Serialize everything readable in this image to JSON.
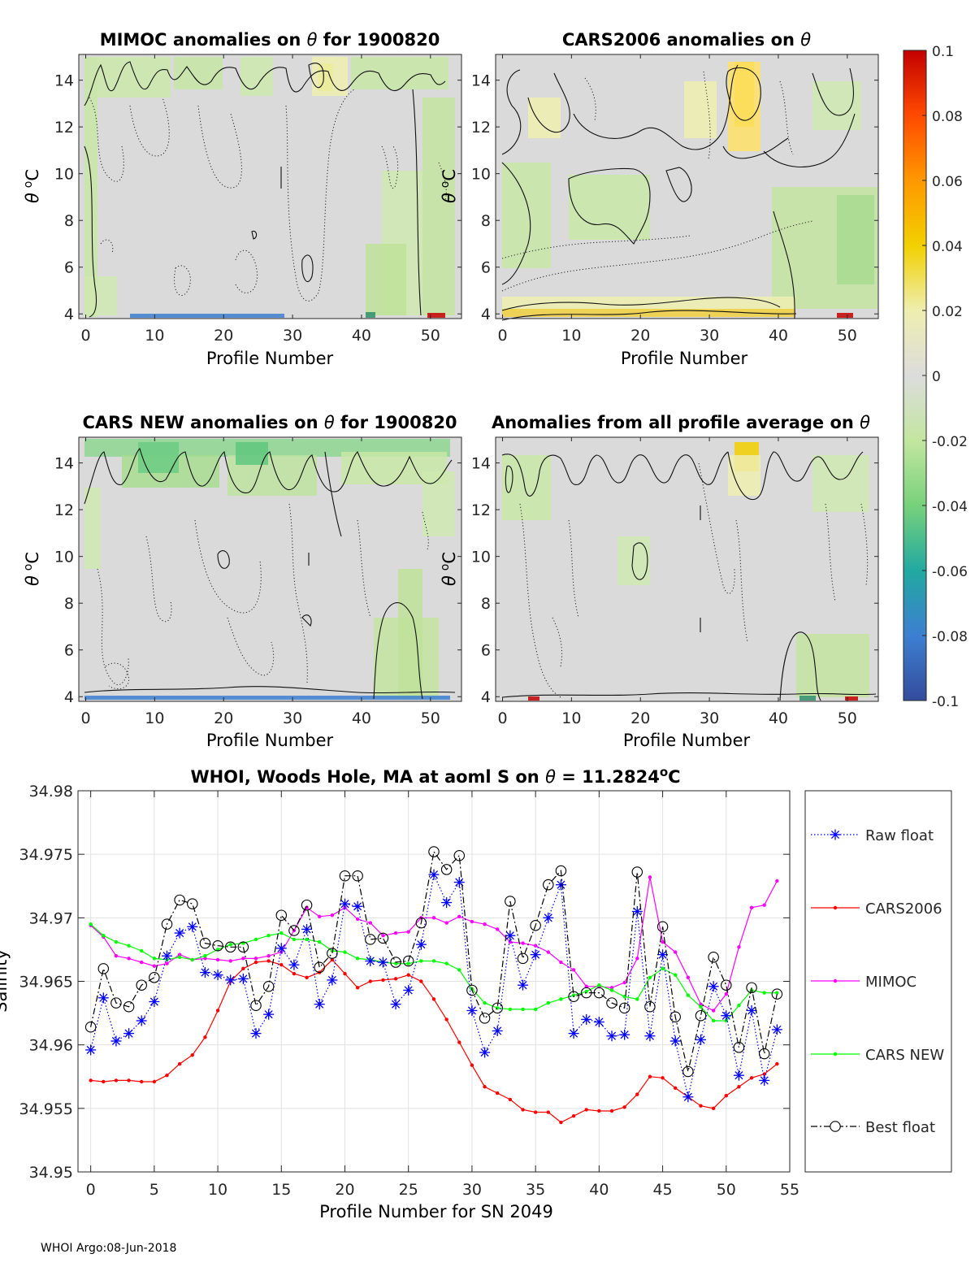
{
  "footer": "WHOI Argo:08-Jun-2018",
  "colorbar": {
    "ticks": [
      "0.1",
      "0.08",
      "0.06",
      "0.04",
      "0.02",
      "0",
      "-0.02",
      "-0.04",
      "-0.06",
      "-0.08",
      "-0.1"
    ],
    "range": [
      -0.1,
      0.1
    ]
  },
  "panels": [
    {
      "title_pre": "MIMOC anomalies on ",
      "theta": "θ",
      "title_post": "  for 1900820",
      "xlabel": "Profile Number",
      "ylabel_theta": "θ",
      "ylabel_o": "o",
      "ylabel_c": "C"
    },
    {
      "title_pre": "CARS2006 anomalies on ",
      "theta": "θ",
      "title_post": "",
      "xlabel": "Profile Number",
      "ylabel_theta": "θ",
      "ylabel_o": "o",
      "ylabel_c": "C"
    },
    {
      "title_pre": "CARS NEW anomalies on ",
      "theta": "θ",
      "title_post": " for 1900820",
      "xlabel": "Profile Number",
      "ylabel_theta": "θ",
      "ylabel_o": "o",
      "ylabel_c": "C"
    },
    {
      "title_pre": "Anomalies from all profile average on ",
      "theta": "θ",
      "title_post": "",
      "xlabel": "Profile Number",
      "ylabel_theta": "θ",
      "ylabel_o": "o",
      "ylabel_c": "C"
    }
  ],
  "chart_data": [
    {
      "type": "heatmap",
      "name": "MIMOC anomalies",
      "xlim": [
        -1,
        54.5
      ],
      "ylim": [
        3.8,
        15.1
      ],
      "xticks": [
        "0",
        "10",
        "20",
        "30",
        "40",
        "50"
      ],
      "xtick_values": [
        0,
        10,
        20,
        30,
        40,
        50
      ],
      "yticks": [
        "4",
        "6",
        "8",
        "10",
        "12",
        "14"
      ],
      "ytick_values": [
        4,
        6,
        8,
        10,
        12,
        14
      ]
    },
    {
      "type": "heatmap",
      "name": "CARS2006 anomalies",
      "xlim": [
        -1,
        54.5
      ],
      "ylim": [
        3.8,
        15.1
      ],
      "xticks": [
        "0",
        "10",
        "20",
        "30",
        "40",
        "50"
      ],
      "xtick_values": [
        0,
        10,
        20,
        30,
        40,
        50
      ],
      "yticks": [
        "4",
        "6",
        "8",
        "10",
        "12",
        "14"
      ],
      "ytick_values": [
        4,
        6,
        8,
        10,
        12,
        14
      ]
    },
    {
      "type": "heatmap",
      "name": "CARS NEW anomalies",
      "xlim": [
        -1,
        54.5
      ],
      "ylim": [
        3.8,
        15.1
      ],
      "xticks": [
        "0",
        "10",
        "20",
        "30",
        "40",
        "50"
      ],
      "xtick_values": [
        0,
        10,
        20,
        30,
        40,
        50
      ],
      "yticks": [
        "4",
        "6",
        "8",
        "10",
        "12",
        "14"
      ],
      "ytick_values": [
        4,
        6,
        8,
        10,
        12,
        14
      ]
    },
    {
      "type": "heatmap",
      "name": "Anomalies from all profile average",
      "xlim": [
        -1,
        54.5
      ],
      "ylim": [
        3.8,
        15.1
      ],
      "xticks": [
        "0",
        "10",
        "20",
        "30",
        "40",
        "50"
      ],
      "xtick_values": [
        0,
        10,
        20,
        30,
        40,
        50
      ],
      "yticks": [
        "4",
        "6",
        "8",
        "10",
        "12",
        "14"
      ],
      "ytick_values": [
        4,
        6,
        8,
        10,
        12,
        14
      ]
    },
    {
      "type": "line",
      "title_pre": "WHOI, Woods Hole, MA at aoml S on ",
      "title_theta": "θ",
      "title_eq": " = 11.2824",
      "title_sup": "o",
      "title_unit": "C",
      "xlabel": "Profile Number for SN 2049",
      "ylabel": "Salinity",
      "xlim": [
        -1,
        55
      ],
      "ylim": [
        34.95,
        34.98
      ],
      "xticks": [
        "0",
        "5",
        "10",
        "15",
        "20",
        "25",
        "30",
        "35",
        "40",
        "45",
        "50",
        "55"
      ],
      "xtick_values": [
        0,
        5,
        10,
        15,
        20,
        25,
        30,
        35,
        40,
        45,
        50,
        55
      ],
      "yticks": [
        "34.95",
        "34.955",
        "34.96",
        "34.965",
        "34.97",
        "34.975",
        "34.98"
      ],
      "ytick_values": [
        34.95,
        34.955,
        34.96,
        34.965,
        34.97,
        34.975,
        34.98
      ],
      "x": [
        0,
        1,
        2,
        3,
        4,
        5,
        6,
        7,
        8,
        9,
        10,
        11,
        12,
        13,
        14,
        15,
        16,
        17,
        18,
        19,
        20,
        21,
        22,
        23,
        24,
        25,
        26,
        27,
        28,
        29,
        30,
        31,
        32,
        33,
        34,
        35,
        36,
        37,
        38,
        39,
        40,
        41,
        42,
        43,
        44,
        45,
        46,
        47,
        48,
        49,
        50,
        51,
        52,
        53,
        54
      ],
      "series": [
        {
          "name": "Raw float",
          "color": "#0000ff",
          "style": "dotted-star",
          "values": [
            34.9596,
            34.9637,
            34.9603,
            34.9609,
            34.9619,
            34.9634,
            34.967,
            34.9688,
            34.9693,
            34.9657,
            34.9655,
            34.9651,
            34.9652,
            34.9609,
            34.9624,
            34.9676,
            34.9663,
            34.9691,
            34.9632,
            34.9651,
            34.9711,
            34.9709,
            34.9666,
            34.9665,
            34.9632,
            34.9643,
            34.9679,
            34.9734,
            34.9712,
            34.9728,
            34.9627,
            34.9594,
            34.9611,
            34.9686,
            34.9647,
            34.9671,
            34.97,
            34.9726,
            34.9609,
            34.962,
            34.9618,
            34.9607,
            34.9608,
            34.9705,
            34.9607,
            34.9671,
            34.9603,
            34.9559,
            34.9604,
            34.9646,
            34.9623,
            34.9576,
            34.9627,
            34.9572,
            34.9612
          ]
        },
        {
          "name": "CARS2006",
          "color": "#ff0000",
          "style": "solid-dot",
          "values": [
            34.9572,
            34.9571,
            34.9572,
            34.9572,
            34.9571,
            34.9571,
            34.9576,
            34.9585,
            34.9592,
            34.9606,
            34.9627,
            34.965,
            34.966,
            34.9665,
            34.9666,
            34.9663,
            34.9656,
            34.9653,
            34.9657,
            34.9667,
            34.9656,
            34.9645,
            34.965,
            34.9651,
            34.9652,
            34.9655,
            34.965,
            34.9636,
            34.962,
            34.9602,
            34.9584,
            34.9567,
            34.9562,
            34.9557,
            34.9549,
            34.9547,
            34.9547,
            34.9539,
            34.9544,
            34.9549,
            34.9548,
            34.9548,
            34.9551,
            34.9561,
            34.9575,
            34.9574,
            34.9566,
            34.9559,
            34.9552,
            34.955,
            34.956,
            34.9567,
            34.9574,
            34.9577,
            34.9585
          ]
        },
        {
          "name": "MIMOC",
          "color": "#ff00ff",
          "style": "solid-dot",
          "values": [
            34.9694,
            34.9685,
            34.967,
            34.9668,
            34.9665,
            34.9662,
            34.9664,
            34.9671,
            34.9667,
            34.9668,
            34.9667,
            34.9666,
            34.9668,
            34.9668,
            34.967,
            34.9673,
            34.969,
            34.9708,
            34.9701,
            34.9702,
            34.9708,
            34.9699,
            34.9696,
            34.9686,
            34.9688,
            34.9689,
            34.97,
            34.97,
            34.9696,
            34.9701,
            34.9697,
            34.9695,
            34.9691,
            34.9681,
            34.968,
            34.9678,
            34.9673,
            34.9665,
            34.9659,
            34.9646,
            34.9646,
            34.9645,
            34.9649,
            34.9668,
            34.9732,
            34.9681,
            34.9673,
            34.9653,
            34.9632,
            34.9627,
            34.964,
            34.9677,
            34.9708,
            34.971,
            34.9729
          ]
        },
        {
          "name": "CARS NEW",
          "color": "#00ff00",
          "style": "solid-dot",
          "values": [
            34.9695,
            34.9686,
            34.9681,
            34.9678,
            34.9674,
            34.9668,
            34.9667,
            34.9669,
            34.9667,
            34.967,
            34.9675,
            34.9679,
            34.968,
            34.9683,
            34.9686,
            34.9688,
            34.9683,
            34.9683,
            34.9681,
            34.9674,
            34.9673,
            34.9668,
            34.9667,
            34.9665,
            34.9664,
            34.9664,
            34.9666,
            34.9666,
            34.9664,
            34.9659,
            34.9644,
            34.9633,
            34.9629,
            34.9628,
            34.9628,
            34.9628,
            34.9633,
            34.9636,
            34.9639,
            34.9642,
            34.9647,
            34.9643,
            34.9638,
            34.9636,
            34.9653,
            34.966,
            34.9655,
            34.9639,
            34.963,
            34.9619,
            34.9619,
            34.9631,
            34.9643,
            34.9641,
            34.9641
          ]
        },
        {
          "name": "Best float",
          "color": "#000000",
          "style": "dashdot-circle",
          "values": [
            34.9614,
            34.966,
            34.9633,
            34.963,
            34.9647,
            34.9653,
            34.9695,
            34.9714,
            34.9711,
            34.968,
            34.9678,
            34.9677,
            34.9677,
            34.9631,
            34.9646,
            34.9702,
            34.969,
            34.971,
            34.9661,
            34.9672,
            34.9733,
            34.9733,
            34.9683,
            34.9684,
            34.9665,
            34.9666,
            34.9696,
            34.9752,
            34.9738,
            34.9749,
            34.9643,
            34.9621,
            34.9629,
            34.9713,
            34.9668,
            34.9694,
            34.9726,
            34.9737,
            34.9638,
            34.9641,
            34.9641,
            34.9633,
            34.9629,
            34.9736,
            34.963,
            34.9693,
            34.9622,
            34.9579,
            34.9623,
            34.9669,
            34.9647,
            34.9598,
            34.9645,
            34.9593,
            34.964
          ]
        }
      ]
    }
  ]
}
